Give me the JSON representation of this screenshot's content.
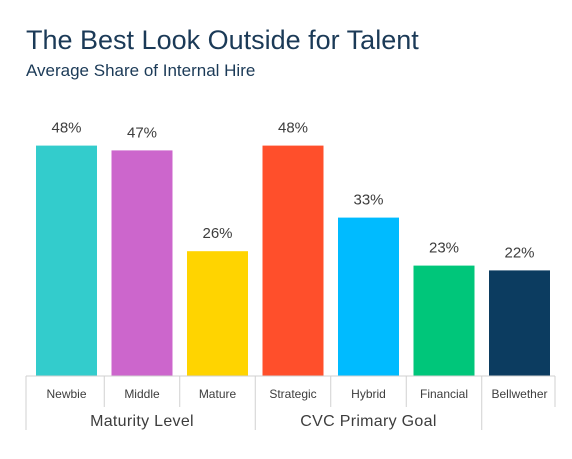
{
  "chart_data": {
    "type": "bar",
    "title": "The Best Look Outside for Talent",
    "subtitle": "Average Share of Internal Hire",
    "categories": [
      "Newbie",
      "Middle",
      "Mature",
      "Strategic",
      "Hybrid",
      "Financial",
      "Bellwether"
    ],
    "values": [
      48,
      47,
      26,
      48,
      33,
      23,
      22
    ],
    "value_labels": [
      "48%",
      "47%",
      "26%",
      "48%",
      "33%",
      "23%",
      "22%"
    ],
    "colors": [
      "#33cccc",
      "#cc66cc",
      "#ffd400",
      "#ff4f2b",
      "#00bbff",
      "#00c67a",
      "#0c3c60"
    ],
    "groups": [
      {
        "label": "Maturity Level",
        "categories": [
          "Newbie",
          "Middle",
          "Mature"
        ]
      },
      {
        "label": "CVC Primary Goal",
        "categories": [
          "Strategic",
          "Hybrid",
          "Financial"
        ]
      },
      {
        "label": "",
        "categories": [
          "Bellwether"
        ]
      }
    ],
    "ylim": [
      0,
      50
    ],
    "unit": "%",
    "grid": false,
    "legend": "none"
  }
}
